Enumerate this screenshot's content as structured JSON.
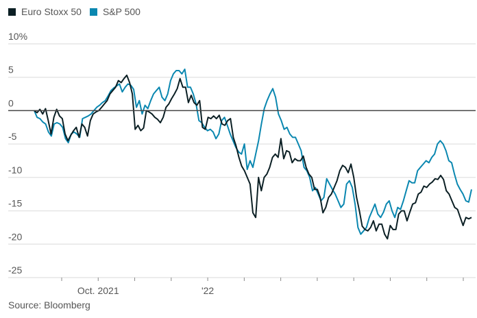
{
  "chart_data": {
    "type": "line",
    "title": "",
    "xlabel": "",
    "ylabel": "",
    "source": "Source: Bloomberg",
    "ylim": [
      -25,
      10
    ],
    "yticks": [
      10,
      5,
      0,
      -5,
      -10,
      -15,
      -20,
      -25
    ],
    "ytick_labels": [
      "10%",
      "5",
      "0",
      "-5",
      "-10",
      "-15",
      "-20",
      "-25"
    ],
    "xtick_labels": [
      {
        "label": "Oct. 2021",
        "index": 1
      },
      {
        "label": "'22",
        "index": 4
      }
    ],
    "xtick_count": 12,
    "zero_line": true,
    "grid": true,
    "legend_position": "top-left",
    "series": [
      {
        "name": "Euro Stoxx 50",
        "color": "#0b1f24",
        "values": [
          0,
          -0.3,
          0.2,
          -0.5,
          0.3,
          -1.5,
          -3.5,
          -1,
          0.2,
          -0.8,
          -1.2,
          -3.5,
          -4.5,
          -3.7,
          -3,
          -2.5,
          -4,
          -2,
          -2.5,
          -3.8,
          -1.5,
          -0.5,
          -0.2,
          0,
          0.5,
          1,
          1.5,
          2.5,
          3,
          3.5,
          4.5,
          4.2,
          4.8,
          5.3,
          4.2,
          2.5,
          -2.8,
          -2.2,
          -3,
          -2.6,
          0,
          -0.2,
          -0.5,
          -1,
          -1.3,
          -1.8,
          -1,
          0.5,
          1,
          1.8,
          2.5,
          3.3,
          4.8,
          3.5,
          3.5,
          1.2,
          2.3,
          1.2,
          0.8,
          1.5,
          -2.5,
          -2.8,
          -1,
          -1.2,
          -0.8,
          -1.2,
          -0.7,
          -2,
          -2.2,
          -1.5,
          -1.2,
          -4,
          -5.3,
          -7,
          -8.3,
          -9,
          -10,
          -11,
          -15.3,
          -16,
          -10,
          -12,
          -10,
          -9.5,
          -8.5,
          -7,
          -6.5,
          -7,
          -4.2,
          -7.2,
          -6,
          -6.2,
          -7.8,
          -7.2,
          -7.5,
          -7.5,
          -6.8,
          -8.5,
          -9.5,
          -10,
          -11.8,
          -11.8,
          -13,
          -15.3,
          -14.5,
          -13,
          -12.5,
          -11.5,
          -10.5,
          -9,
          -8.2,
          -8.5,
          -9.3,
          -8,
          -10,
          -13,
          -15,
          -17.3,
          -17.8,
          -18,
          -17.5,
          -16.5,
          -18,
          -17,
          -17,
          -18.5,
          -19.2,
          -17.2,
          -17.8,
          -17.8,
          -15.5,
          -15,
          -15,
          -16.5,
          -15.2,
          -14,
          -13.8,
          -12.5,
          -12.2,
          -11.3,
          -11.5,
          -11,
          -10.7,
          -10.2,
          -10.3,
          -9.7,
          -10.3,
          -12,
          -12.5,
          -13.5,
          -14.5,
          -14.8,
          -16,
          -17.2,
          -16,
          -16.2,
          -16
        ]
      },
      {
        "name": "S&P 500",
        "color": "#0a87b0",
        "values": [
          0,
          -1,
          -1.2,
          -1.7,
          -2,
          -3.2,
          -3.8,
          -2,
          -1.8,
          -2,
          -2.5,
          -4.2,
          -4.8,
          -3.5,
          -3.2,
          -3.5,
          -4,
          -1.2,
          -1,
          -0.8,
          -0.5,
          0,
          0.5,
          0.8,
          1.2,
          1.5,
          2.2,
          3,
          3.4,
          3.7,
          4,
          2.8,
          3.5,
          4,
          3.8,
          3.2,
          0.5,
          1.5,
          -0.5,
          0.8,
          0.3,
          1.5,
          2.5,
          3,
          3.5,
          2,
          1.5,
          2.5,
          4.5,
          5.5,
          6,
          6,
          5.5,
          6.2,
          3.5,
          3.5,
          2.5,
          1,
          -1.5,
          -1.8,
          -2.5,
          -3,
          -2.8,
          -3.2,
          -4.2,
          -3.5,
          -1.5,
          -1,
          -2.2,
          -3.5,
          -4.5,
          -5.5,
          -6.2,
          -6.5,
          -5,
          -8.8,
          -7.5,
          -8.5,
          -6.5,
          -4.5,
          -2,
          0.3,
          1.5,
          2.5,
          3.3,
          2,
          -0.5,
          -1.5,
          -2.8,
          -2.5,
          -3.5,
          -4,
          -4,
          -5,
          -6,
          -8.5,
          -9,
          -10,
          -12,
          -11.5,
          -12.5,
          -13.5,
          -13,
          -10.2,
          -11,
          -11.8,
          -12.5,
          -13.5,
          -14.5,
          -14,
          -11,
          -10.5,
          -11.5,
          -14,
          -17.5,
          -18.5,
          -18,
          -17.5,
          -16,
          -15,
          -14,
          -15.5,
          -16,
          -15.2,
          -14,
          -13.5,
          -15,
          -16,
          -14.5,
          -14.8,
          -13.5,
          -12,
          -10.5,
          -10.8,
          -10.8,
          -9,
          -8.5,
          -8,
          -7.5,
          -7.8,
          -7,
          -6.5,
          -5,
          -4.5,
          -5,
          -6,
          -7.5,
          -7.8,
          -9.5,
          -11,
          -11.8,
          -12.5,
          -13.5,
          -13.7,
          -11.8
        ]
      }
    ]
  }
}
